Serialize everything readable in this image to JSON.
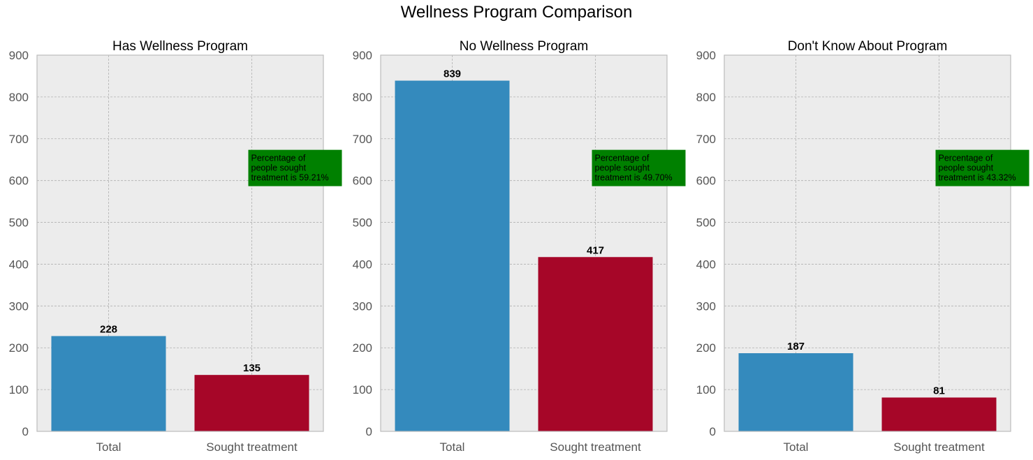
{
  "figure": {
    "title": "Wellness Program Comparison"
  },
  "colors": {
    "plot_bg": "#ececec",
    "grid": "#b0b0b0",
    "axis_border": "#bcbcbc",
    "bar_total": "#348abd",
    "bar_treatment": "#a60628",
    "annotation_box": "#008000"
  },
  "chart_data": [
    {
      "type": "bar",
      "title": "Has Wellness Program",
      "categories": [
        "Total",
        "Sought treatment"
      ],
      "values": [
        228,
        135
      ],
      "value_labels": [
        "228",
        "135"
      ],
      "ylim": [
        0,
        900
      ],
      "yticks": [
        "0",
        "100",
        "200",
        "300",
        "400",
        "500",
        "600",
        "700",
        "800",
        "900"
      ],
      "grid": true,
      "annotation": [
        "Percentage of",
        "people sought",
        "treatment is 59.21%"
      ]
    },
    {
      "type": "bar",
      "title": "No Wellness Program",
      "categories": [
        "Total",
        "Sought treatment"
      ],
      "values": [
        839,
        417
      ],
      "value_labels": [
        "839",
        "417"
      ],
      "ylim": [
        0,
        900
      ],
      "yticks": [
        "0",
        "100",
        "200",
        "300",
        "400",
        "500",
        "600",
        "700",
        "800",
        "900"
      ],
      "grid": true,
      "annotation": [
        "Percentage of",
        "people sought",
        "treatment is 49.70%"
      ]
    },
    {
      "type": "bar",
      "title": "Don't Know About Program",
      "categories": [
        "Total",
        "Sought treatment"
      ],
      "values": [
        187,
        81
      ],
      "value_labels": [
        "187",
        "81"
      ],
      "ylim": [
        0,
        900
      ],
      "yticks": [
        "0",
        "100",
        "200",
        "300",
        "400",
        "500",
        "600",
        "700",
        "800",
        "900"
      ],
      "grid": true,
      "annotation": [
        "Percentage of",
        "people sought",
        "treatment is 43.32%"
      ]
    }
  ]
}
